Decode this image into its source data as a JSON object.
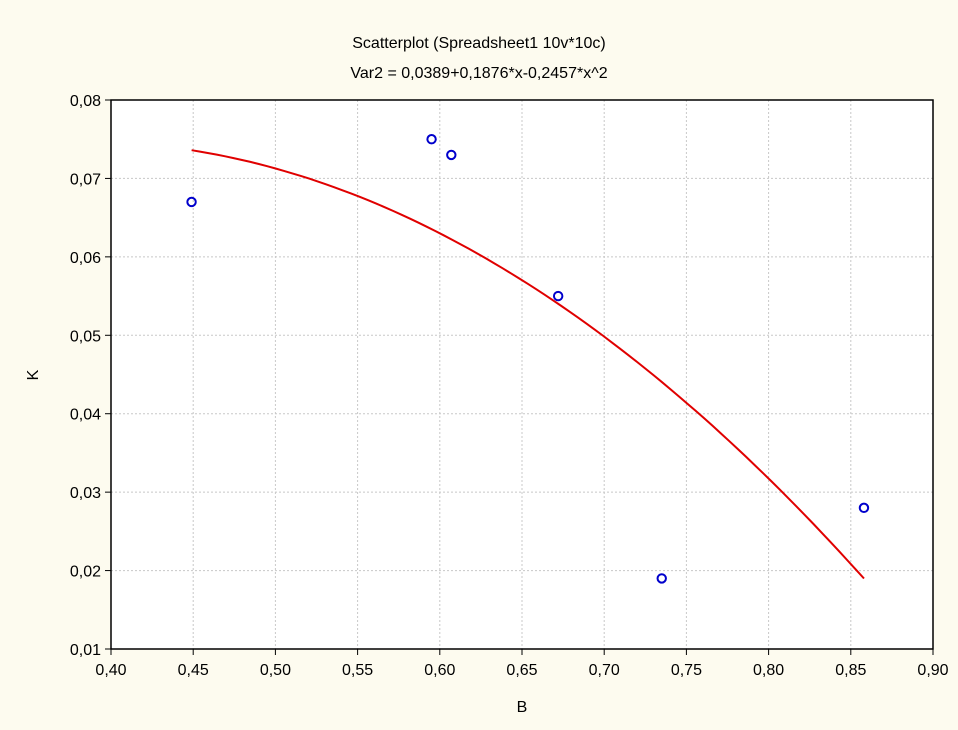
{
  "chart_data": {
    "type": "scatter",
    "title": "Scatterplot (Spreadsheet1 10v*10c)",
    "subtitle": "Var2 = 0,0389+0,1876*x-0,2457*x^2",
    "xlabel": "B",
    "ylabel": "K",
    "xlim": [
      0.4,
      0.9
    ],
    "ylim": [
      0.01,
      0.08
    ],
    "x_ticks": [
      "0,40",
      "0,45",
      "0,50",
      "0,55",
      "0,60",
      "0,65",
      "0,70",
      "0,75",
      "0,80",
      "0,85",
      "0,90"
    ],
    "y_ticks": [
      "0,01",
      "0,02",
      "0,03",
      "0,04",
      "0,05",
      "0,06",
      "0,07",
      "0,08"
    ],
    "grid": true,
    "points": [
      {
        "x": 0.449,
        "y": 0.067
      },
      {
        "x": 0.595,
        "y": 0.075
      },
      {
        "x": 0.607,
        "y": 0.073
      },
      {
        "x": 0.672,
        "y": 0.055
      },
      {
        "x": 0.735,
        "y": 0.019
      },
      {
        "x": 0.858,
        "y": 0.028
      }
    ],
    "fit": {
      "type": "quadratic",
      "coefficients": [
        0.0389,
        0.1876,
        -0.2457
      ],
      "x_range": [
        0.449,
        0.858
      ]
    },
    "colors": {
      "background": "#fdfbef",
      "plot_area": "#ffffff",
      "points": "#0000cc",
      "fit_line": "#e00000",
      "grid": "#c8c8c8"
    }
  }
}
